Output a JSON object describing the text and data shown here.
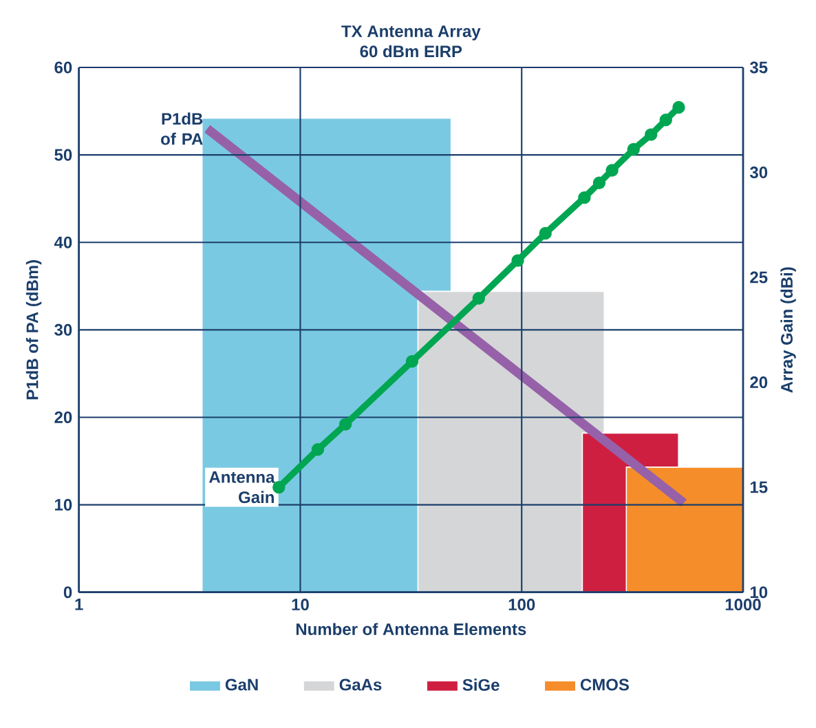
{
  "chart_data": {
    "type": "line",
    "title": "TX Antenna Array",
    "subtitle": "60 dBm EIRP",
    "xlabel": "Number of Antenna Elements",
    "ylabel": "P1dB of PA (dBm)",
    "y2label": "Array Gain (dBi)",
    "log": "x",
    "grid": true,
    "legend": "bottom",
    "xlim": [
      1,
      1000
    ],
    "xticks": [
      1,
      10,
      100,
      1000
    ],
    "ylim": [
      0,
      60
    ],
    "yticks": [
      0,
      10,
      20,
      30,
      40,
      50,
      60
    ],
    "y2lim": [
      10,
      35
    ],
    "y2ticks": [
      10,
      15,
      20,
      25,
      30,
      35
    ],
    "series": [
      {
        "name": "GaN",
        "type": "area",
        "color": "#7ac9e2",
        "x": [
          3.6,
          48
        ],
        "values": [
          54.2,
          54.2
        ]
      },
      {
        "name": "GaAs",
        "type": "area",
        "color": "#d5d6d8",
        "x": [
          34,
          236
        ],
        "values": [
          34.4,
          34.4
        ]
      },
      {
        "name": "SiGe",
        "type": "area",
        "color": "#cf1f41",
        "x": [
          188,
          511
        ],
        "values": [
          18.2,
          18.2
        ]
      },
      {
        "name": "CMOS",
        "type": "area",
        "color": "#f58d2a",
        "x": [
          297,
          1000
        ],
        "values": [
          14.3,
          14.3
        ]
      },
      {
        "name": "P1dB of PA",
        "color": "#9661a8",
        "x": [
          3.8,
          540
        ],
        "values": [
          53,
          10.2
        ]
      },
      {
        "name": "Antenna Gain",
        "axis": "y2",
        "marker": "circle",
        "color": "#00a651",
        "x": [
          8,
          12,
          16,
          32,
          64,
          96,
          128,
          192,
          224,
          256,
          320,
          384,
          448,
          512
        ],
        "values": [
          15.0,
          16.8,
          18.0,
          21.0,
          24.0,
          25.8,
          27.1,
          28.8,
          29.5,
          30.1,
          31.1,
          31.8,
          32.5,
          33.1
        ]
      }
    ]
  }
}
